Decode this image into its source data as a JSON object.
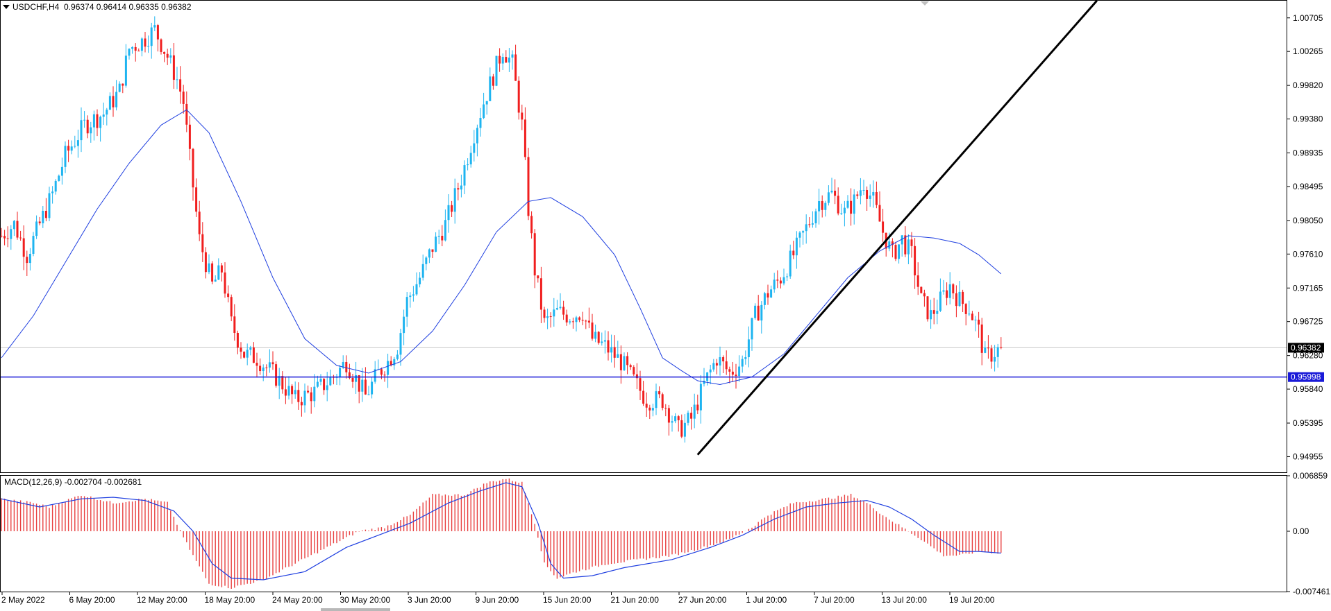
{
  "header": {
    "symbol": "USDCHF,H4",
    "ohlc": "0.96374 0.96414 0.96335 0.96382"
  },
  "macd_header": {
    "label": "MACD(12,26,9) -0.002704 -0.002681"
  },
  "price_scale": {
    "ticks": [
      "1.00705",
      "1.00265",
      "0.99820",
      "0.99380",
      "0.98935",
      "0.98495",
      "0.98050",
      "0.97610",
      "0.97165",
      "0.96725",
      "0.96280",
      "0.95840",
      "0.95395",
      "0.94955"
    ],
    "current_price_label": "0.96382",
    "hline_label": "0.95998"
  },
  "macd_scale": {
    "ticks": [
      "0.006859",
      "0.00",
      "-0.007461"
    ]
  },
  "time_axis": {
    "labels": [
      "2 May 2022",
      "6 May 20:00",
      "12 May 20:00",
      "18 May 20:00",
      "24 May 20:00",
      "30 May 20:00",
      "3 Jun 20:00",
      "9 Jun 20:00",
      "15 Jun 20:00",
      "21 Jun 20:00",
      "27 Jun 20:00",
      "1 Jul 20:00",
      "7 Jul 20:00",
      "13 Jul 20:00",
      "19 Jul 20:00"
    ]
  },
  "colors": {
    "bull": "#1eb4f0",
    "bear": "#f01e1e",
    "ma": "#1f3fe0",
    "hline": "#1a1ad8",
    "trendline": "#000000",
    "hist": "#e84040"
  },
  "chart_data": [
    {
      "type": "candlestick",
      "title": "USDCHF,H4",
      "ylim": [
        0.9475,
        1.0093
      ],
      "price_path": [
        [
          0,
          0.9785
        ],
        [
          4,
          0.98
        ],
        [
          8,
          0.976
        ],
        [
          12,
          0.98
        ],
        [
          16,
          0.984
        ],
        [
          20,
          0.989
        ],
        [
          26,
          0.993
        ],
        [
          32,
          0.9945
        ],
        [
          37,
          0.9975
        ],
        [
          40,
          1.003
        ],
        [
          44,
          1.004
        ],
        [
          48,
          1.0055
        ],
        [
          52,
          1.002
        ],
        [
          55,
          0.999
        ],
        [
          57,
          0.996
        ],
        [
          59,
          0.9885
        ],
        [
          62,
          0.978
        ],
        [
          66,
          0.972
        ],
        [
          69,
          0.974
        ],
        [
          72,
          0.967
        ],
        [
          76,
          0.963
        ],
        [
          80,
          0.9625
        ],
        [
          86,
          0.96
        ],
        [
          92,
          0.957
        ],
        [
          98,
          0.958
        ],
        [
          104,
          0.96
        ],
        [
          108,
          0.962
        ],
        [
          114,
          0.9575
        ],
        [
          118,
          0.9605
        ],
        [
          121,
          0.962
        ],
        [
          124,
          0.964
        ],
        [
          127,
          0.97
        ],
        [
          131,
          0.973
        ],
        [
          135,
          0.977
        ],
        [
          139,
          0.98
        ],
        [
          144,
          0.986
        ],
        [
          148,
          0.992
        ],
        [
          151,
          0.996
        ],
        [
          154,
          0.9995
        ],
        [
          157,
          1.003
        ],
        [
          160,
          1.001
        ],
        [
          163,
          0.993
        ],
        [
          165,
          0.982
        ],
        [
          167,
          0.974
        ],
        [
          170,
          0.967
        ],
        [
          174,
          0.9685
        ],
        [
          178,
          0.968
        ],
        [
          182,
          0.9685
        ],
        [
          185,
          0.965
        ],
        [
          189,
          0.964
        ],
        [
          194,
          0.962
        ],
        [
          198,
          0.9595
        ],
        [
          202,
          0.957
        ],
        [
          207,
          0.957
        ],
        [
          212,
          0.953
        ],
        [
          216,
          0.9545
        ],
        [
          220,
          0.959
        ],
        [
          224,
          0.9625
        ],
        [
          228,
          0.9605
        ],
        [
          232,
          0.962
        ],
        [
          236,
          0.968
        ],
        [
          240,
          0.971
        ],
        [
          244,
          0.973
        ],
        [
          248,
          0.976
        ],
        [
          252,
          0.9795
        ],
        [
          256,
          0.983
        ],
        [
          260,
          0.984
        ],
        [
          264,
          0.9815
        ],
        [
          267,
          0.983
        ],
        [
          270,
          0.9855
        ],
        [
          273,
          0.983
        ],
        [
          276,
          0.979
        ],
        [
          279,
          0.976
        ],
        [
          282,
          0.978
        ],
        [
          285,
          0.976
        ],
        [
          288,
          0.97
        ],
        [
          291,
          0.968
        ],
        [
          294,
          0.97
        ],
        [
          297,
          0.972
        ],
        [
          300,
          0.97
        ],
        [
          303,
          0.969
        ],
        [
          306,
          0.966
        ],
        [
          308,
          0.9625
        ],
        [
          310,
          0.963
        ],
        [
          313,
          0.9638
        ]
      ],
      "moving_average_points": [
        [
          0,
          0.9625
        ],
        [
          10,
          0.968
        ],
        [
          20,
          0.975
        ],
        [
          30,
          0.982
        ],
        [
          40,
          0.988
        ],
        [
          50,
          0.993
        ],
        [
          58,
          0.995
        ],
        [
          65,
          0.992
        ],
        [
          75,
          0.983
        ],
        [
          85,
          0.973
        ],
        [
          95,
          0.965
        ],
        [
          105,
          0.9615
        ],
        [
          115,
          0.9605
        ],
        [
          125,
          0.962
        ],
        [
          135,
          0.966
        ],
        [
          145,
          0.972
        ],
        [
          155,
          0.979
        ],
        [
          165,
          0.983
        ],
        [
          172,
          0.9835
        ],
        [
          182,
          0.981
        ],
        [
          192,
          0.976
        ],
        [
          200,
          0.969
        ],
        [
          207,
          0.9625
        ],
        [
          213,
          0.9608
        ],
        [
          218,
          0.9595
        ],
        [
          225,
          0.959
        ],
        [
          235,
          0.96
        ],
        [
          245,
          0.963
        ],
        [
          255,
          0.968
        ],
        [
          265,
          0.973
        ],
        [
          275,
          0.9765
        ],
        [
          284,
          0.9785
        ],
        [
          292,
          0.9782
        ],
        [
          300,
          0.9775
        ],
        [
          306,
          0.976
        ],
        [
          313,
          0.9735
        ]
      ],
      "horizontal_line": 0.95998,
      "current_price": 0.96382,
      "trendline": {
        "from": [
          218,
          0.9498
        ],
        "to": [
          343,
          1.0093
        ]
      }
    },
    {
      "type": "bar",
      "title": "MACD(12,26,9)",
      "ylim": [
        -0.007461,
        0.006859
      ],
      "macd": -0.002704,
      "signal": -0.002681,
      "histogram_path": [
        [
          0,
          0.004
        ],
        [
          10,
          0.0035
        ],
        [
          15,
          0.003
        ],
        [
          25,
          0.0045
        ],
        [
          35,
          0.0035
        ],
        [
          45,
          0.004
        ],
        [
          52,
          0.0035
        ],
        [
          56,
          0.0
        ],
        [
          60,
          -0.003
        ],
        [
          65,
          -0.0065
        ],
        [
          72,
          -0.007
        ],
        [
          82,
          -0.006
        ],
        [
          92,
          -0.004
        ],
        [
          102,
          -0.002
        ],
        [
          112,
          0.0
        ],
        [
          120,
          0.0005
        ],
        [
          128,
          0.002
        ],
        [
          135,
          0.0045
        ],
        [
          145,
          0.0045
        ],
        [
          152,
          0.006
        ],
        [
          158,
          0.0065
        ],
        [
          163,
          0.006
        ],
        [
          167,
          0.001
        ],
        [
          170,
          -0.004
        ],
        [
          174,
          -0.0058
        ],
        [
          180,
          -0.005
        ],
        [
          190,
          -0.004
        ],
        [
          200,
          -0.0035
        ],
        [
          210,
          -0.003
        ],
        [
          220,
          -0.002
        ],
        [
          228,
          -0.001
        ],
        [
          235,
          0.0005
        ],
        [
          240,
          0.002
        ],
        [
          248,
          0.0035
        ],
        [
          258,
          0.004
        ],
        [
          266,
          0.0045
        ],
        [
          271,
          0.0035
        ],
        [
          276,
          0.002
        ],
        [
          282,
          0.0005
        ],
        [
          288,
          -0.001
        ],
        [
          295,
          -0.003
        ],
        [
          300,
          -0.003
        ],
        [
          306,
          -0.0025
        ],
        [
          313,
          -0.0027
        ]
      ],
      "signal_path": [
        [
          0,
          0.004
        ],
        [
          12,
          0.003
        ],
        [
          25,
          0.004
        ],
        [
          35,
          0.0042
        ],
        [
          45,
          0.0038
        ],
        [
          54,
          0.0025
        ],
        [
          60,
          0.0
        ],
        [
          66,
          -0.004
        ],
        [
          72,
          -0.0058
        ],
        [
          82,
          -0.006
        ],
        [
          95,
          -0.005
        ],
        [
          108,
          -0.002
        ],
        [
          118,
          -0.0005
        ],
        [
          128,
          0.001
        ],
        [
          140,
          0.0035
        ],
        [
          150,
          0.005
        ],
        [
          158,
          0.006
        ],
        [
          163,
          0.0055
        ],
        [
          168,
          0.001
        ],
        [
          172,
          -0.004
        ],
        [
          176,
          -0.0058
        ],
        [
          185,
          -0.0055
        ],
        [
          195,
          -0.0045
        ],
        [
          210,
          -0.0035
        ],
        [
          222,
          -0.002
        ],
        [
          232,
          -0.0005
        ],
        [
          242,
          0.0015
        ],
        [
          252,
          0.003
        ],
        [
          262,
          0.0035
        ],
        [
          271,
          0.0038
        ],
        [
          278,
          0.003
        ],
        [
          285,
          0.0015
        ],
        [
          292,
          -0.0005
        ],
        [
          300,
          -0.0025
        ],
        [
          306,
          -0.0025
        ],
        [
          313,
          -0.0027
        ]
      ]
    }
  ]
}
